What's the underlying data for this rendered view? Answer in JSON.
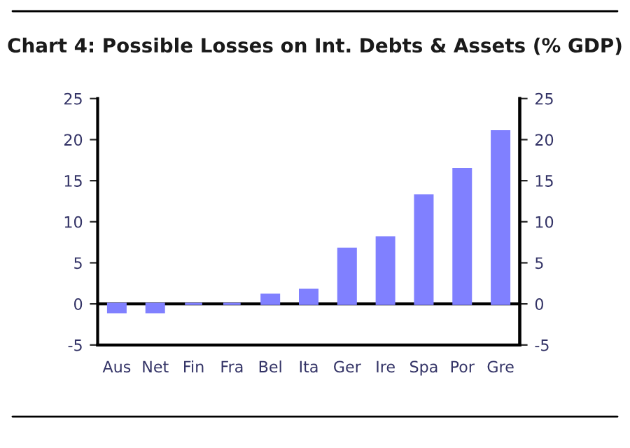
{
  "chart_data": {
    "type": "bar",
    "title": "Chart 4: Possible Losses on Int. Debts & Assets (% GDP)",
    "categories": [
      "Aus",
      "Net",
      "Fin",
      "Fra",
      "Bel",
      "Ita",
      "Ger",
      "Ire",
      "Spa",
      "Por",
      "Gre"
    ],
    "values": [
      -1,
      -1,
      0,
      0,
      1.1,
      1.7,
      6.7,
      8.1,
      13.2,
      16.4,
      21.0
    ],
    "color": "#8080ff",
    "ylim": [
      -5,
      25
    ],
    "yticks": [
      -5,
      0,
      5,
      10,
      15,
      20,
      25
    ],
    "y2lim": [
      -5,
      25
    ],
    "y2ticks": [
      -5,
      0,
      5,
      10,
      15,
      20,
      25
    ],
    "ref_lines": [
      {
        "axis": "y",
        "value": 0,
        "color": "#000000"
      }
    ],
    "grid": false
  }
}
